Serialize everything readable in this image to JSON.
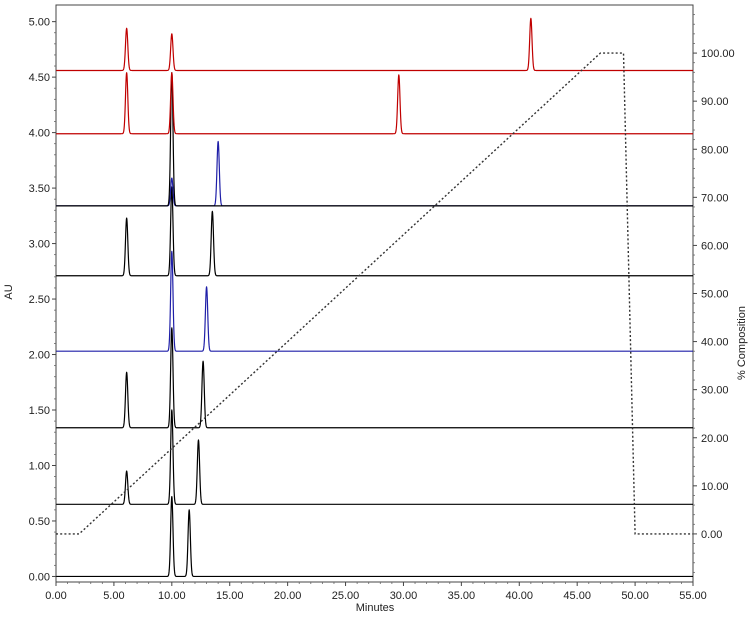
{
  "chart_data": {
    "type": "line",
    "title": "",
    "xlabel": "Minutes",
    "ylabel": "AU",
    "y2label": "% Composition",
    "xlim": [
      0,
      55
    ],
    "ylim": [
      -0.05,
      5.15
    ],
    "y2lim": [
      -10,
      110
    ],
    "xticks": [
      "0.00",
      "5.00",
      "10.00",
      "15.00",
      "20.00",
      "25.00",
      "30.00",
      "35.00",
      "40.00",
      "45.00",
      "50.00",
      "55.00"
    ],
    "yticks": [
      "0.00",
      "0.50",
      "1.00",
      "1.50",
      "2.00",
      "2.50",
      "3.00",
      "3.50",
      "4.00",
      "4.50",
      "5.00"
    ],
    "y2ticks": [
      "0.00",
      "10.00",
      "20.00",
      "30.00",
      "40.00",
      "50.00",
      "60.00",
      "70.00",
      "80.00",
      "90.00",
      "100.00"
    ],
    "grid": false,
    "legend": "none",
    "series": [
      {
        "color": "#000000",
        "baseline": 0.0,
        "peaks": [
          {
            "x": 10.0,
            "height": 0.72
          },
          {
            "x": 11.5,
            "height": 0.6
          }
        ]
      },
      {
        "color": "#000000",
        "baseline": 0.65,
        "peaks": [
          {
            "x": 6.1,
            "height": 0.3
          },
          {
            "x": 10.0,
            "height": 0.85
          },
          {
            "x": 12.3,
            "height": 0.58
          }
        ]
      },
      {
        "color": "#000000",
        "baseline": 1.34,
        "peaks": [
          {
            "x": 6.1,
            "height": 0.5
          },
          {
            "x": 10.0,
            "height": 0.9
          },
          {
            "x": 12.7,
            "height": 0.6
          }
        ]
      },
      {
        "color": "#1f1fa8",
        "baseline": 2.03,
        "peaks": [
          {
            "x": 10.0,
            "height": 0.9
          },
          {
            "x": 13.0,
            "height": 0.58
          }
        ]
      },
      {
        "color": "#000000",
        "baseline": 2.71,
        "peaks": [
          {
            "x": 6.1,
            "height": 0.52
          },
          {
            "x": 10.0,
            "height": 0.8
          },
          {
            "x": 13.5,
            "height": 0.58
          }
        ]
      },
      {
        "color": "#1f1fa8",
        "baseline": 3.34,
        "peaks": [
          {
            "x": 10.0,
            "height": 0.25
          },
          {
            "x": 14.0,
            "height": 0.58
          }
        ]
      },
      {
        "color": "#000000",
        "baseline": 3.34,
        "peaks": [
          {
            "x": 10.0,
            "height": 1.2
          }
        ]
      },
      {
        "color": "#c00000",
        "baseline": 3.99,
        "peaks": [
          {
            "x": 6.1,
            "height": 0.55
          },
          {
            "x": 10.0,
            "height": 0.55
          },
          {
            "x": 29.6,
            "height": 0.53
          }
        ]
      },
      {
        "color": "#c00000",
        "baseline": 4.56,
        "peaks": [
          {
            "x": 6.1,
            "height": 0.38
          },
          {
            "x": 10.0,
            "height": 0.33
          },
          {
            "x": 41.0,
            "height": 0.47
          }
        ]
      }
    ],
    "gradient": {
      "axis": "right",
      "style": "dotted",
      "x": [
        0,
        2,
        47,
        49,
        50,
        55
      ],
      "y": [
        0,
        0,
        100,
        100,
        0,
        0
      ]
    }
  }
}
